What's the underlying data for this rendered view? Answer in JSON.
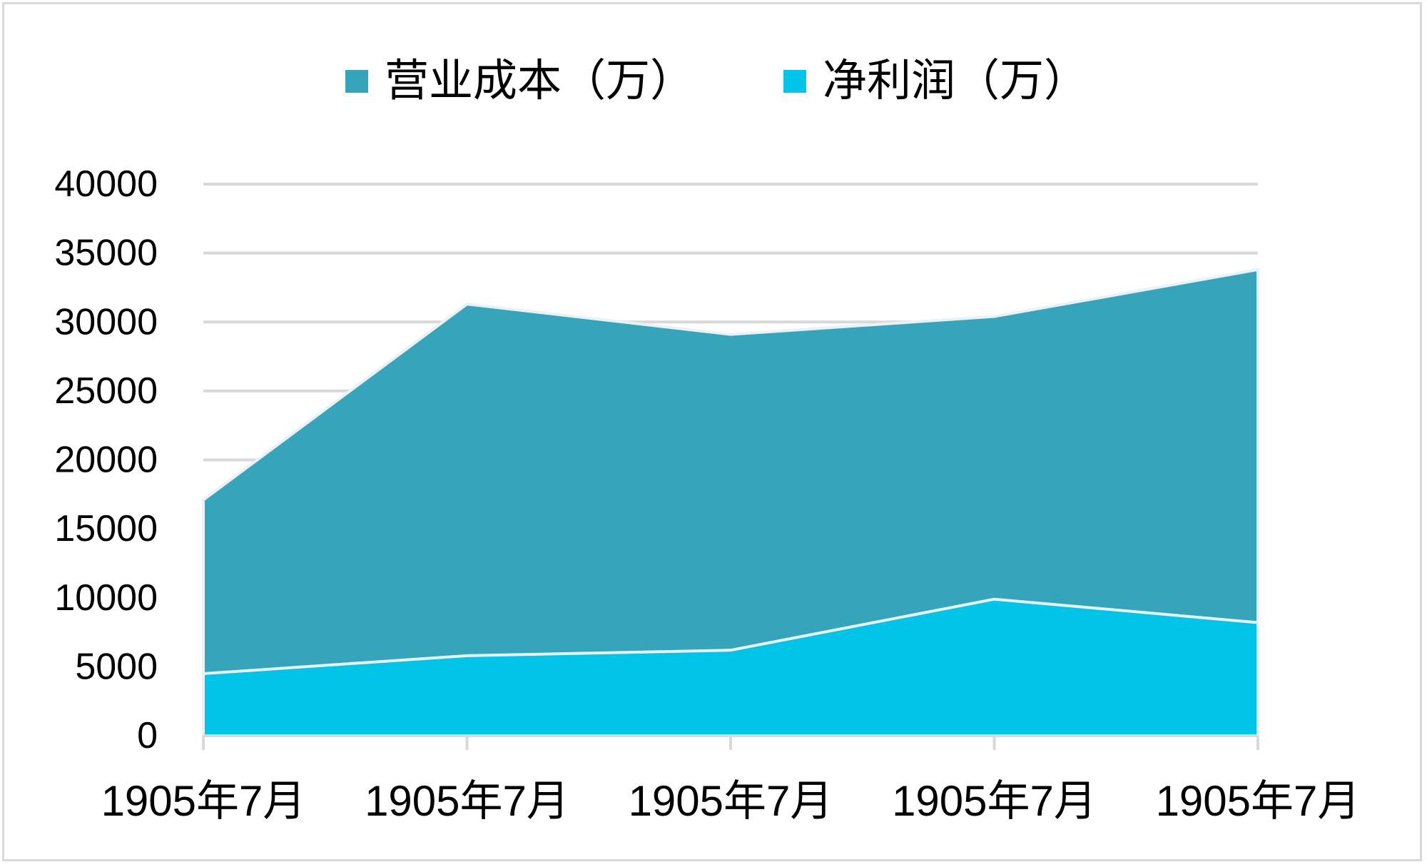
{
  "chart_data": {
    "type": "area",
    "stacked": false,
    "categories": [
      "1905年7月",
      "1905年7月",
      "1905年7月",
      "1905年7月",
      "1905年7月"
    ],
    "series": [
      {
        "name": "营业成本（万）",
        "values": [
          17100,
          31300,
          29100,
          30400,
          33800
        ],
        "color": "#36a5bb"
      },
      {
        "name": "净利润（万）",
        "values": [
          4500,
          5800,
          6200,
          9900,
          8200
        ],
        "color": "#00c4e8"
      }
    ],
    "yticks": [
      0,
      5000,
      10000,
      15000,
      20000,
      25000,
      30000,
      35000,
      40000
    ],
    "ylim": [
      0,
      40000
    ],
    "grid": true,
    "legend": "top",
    "title": "",
    "xlabel": "",
    "ylabel": ""
  }
}
